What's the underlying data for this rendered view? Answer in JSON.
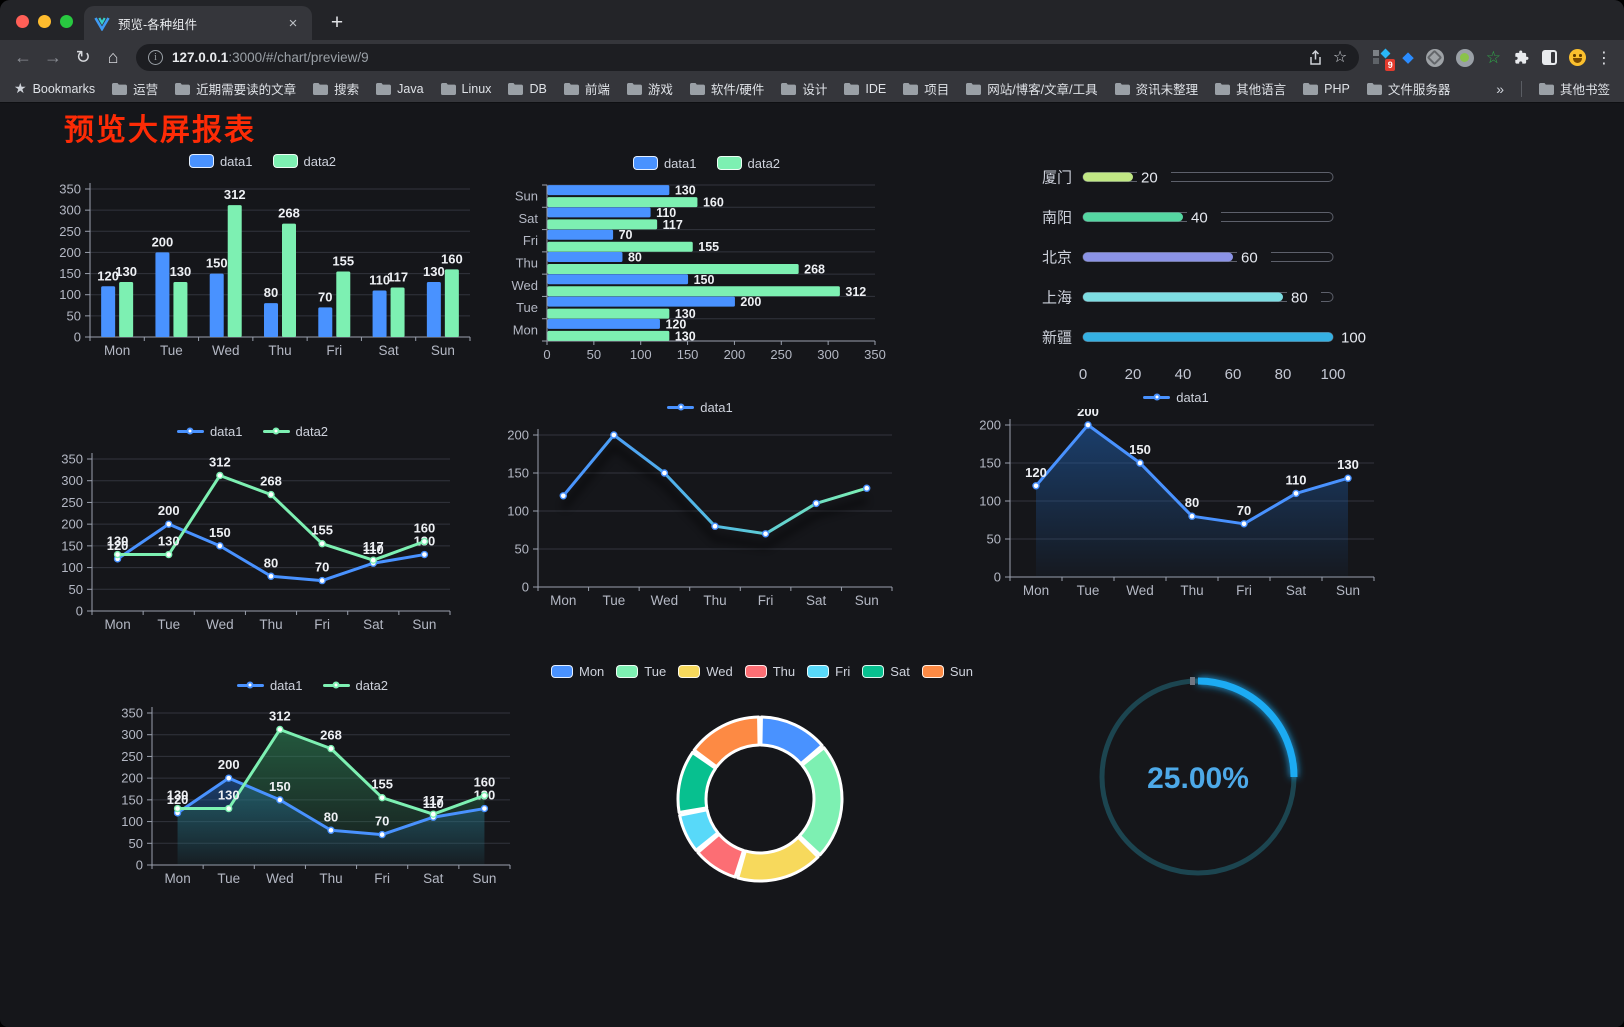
{
  "browser": {
    "tab": {
      "title": "预览-各种组件"
    },
    "url": {
      "host": "127.0.0.1",
      "rest": ":3000/#/chart/preview/9"
    },
    "bookmarks_label": "Bookmarks",
    "bookmarks": [
      "运营",
      "近期需要读的文章",
      "搜索",
      "Java",
      "Linux",
      "DB",
      "前端",
      "游戏",
      "软件/硬件",
      "设计",
      "IDE",
      "项目",
      "网站/博客/文章/工具",
      "资讯未整理",
      "其他语言",
      "PHP",
      "文件服务器"
    ],
    "other_bookmarks": "其他书签",
    "extensions_badge": "9"
  },
  "icons": {
    "back": "←",
    "forward": "→",
    "reload": "↻",
    "home": "⌂",
    "star_outline": "☆",
    "green_star": "☆",
    "bookmarks_star": "★",
    "overflow_chevron": "»",
    "menu_kebab": "⋮",
    "info": "i",
    "gem": "◆",
    "close": "×",
    "plus": "+"
  },
  "page": {
    "title": "预览大屏报表"
  },
  "colors": {
    "accent_blue": "#4992ff",
    "accent_green": "#7df0b2",
    "title_red": "#fd2b06",
    "gauge_blue": "#1fabf3",
    "page_bg": "#15161a"
  },
  "chart_data": [
    {
      "id": "c1",
      "name": "grouped-bar-chart",
      "type": "bar",
      "legend": "rect",
      "categories": [
        "Mon",
        "Tue",
        "Wed",
        "Thu",
        "Fri",
        "Sat",
        "Sun"
      ],
      "series": [
        {
          "name": "data1",
          "color": "#4992ff",
          "values": [
            120,
            200,
            150,
            80,
            70,
            110,
            130
          ]
        },
        {
          "name": "data2",
          "color": "#7df0b2",
          "values": [
            130,
            130,
            312,
            268,
            155,
            117,
            160
          ]
        }
      ],
      "ylim": [
        0,
        350
      ],
      "ystep": 50
    },
    {
      "id": "c2",
      "name": "horizontal-bar-chart",
      "type": "hbar",
      "legend": "rect",
      "categories": [
        "Mon",
        "Tue",
        "Wed",
        "Thu",
        "Fri",
        "Sat",
        "Sun"
      ],
      "series": [
        {
          "name": "data1",
          "color": "#4992ff",
          "values": [
            120,
            200,
            150,
            80,
            70,
            110,
            130
          ]
        },
        {
          "name": "data2",
          "color": "#7df0b2",
          "values": [
            130,
            130,
            312,
            268,
            155,
            117,
            160
          ]
        }
      ],
      "xlim": [
        0,
        350
      ],
      "xstep": 50
    },
    {
      "id": "c3",
      "name": "progress-bar-list",
      "type": "progress",
      "items": [
        {
          "label": "厦门",
          "value": 20,
          "color": "#c0e784"
        },
        {
          "label": "南阳",
          "value": 40,
          "color": "#55d7a2"
        },
        {
          "label": "北京",
          "value": 60,
          "color": "#8b93e6"
        },
        {
          "label": "上海",
          "value": 80,
          "color": "#7ddde2"
        },
        {
          "label": "新疆",
          "value": 100,
          "color": "#35b0e2"
        }
      ],
      "axis": [
        0,
        20,
        40,
        60,
        80,
        100
      ]
    },
    {
      "id": "c4",
      "name": "two-line-chart",
      "type": "line",
      "legend": "line",
      "labels": true,
      "categories": [
        "Mon",
        "Tue",
        "Wed",
        "Thu",
        "Fri",
        "Sat",
        "Sun"
      ],
      "series": [
        {
          "name": "data1",
          "color": "#4992ff",
          "values": [
            120,
            200,
            150,
            80,
            70,
            110,
            130
          ]
        },
        {
          "name": "data2",
          "color": "#7df0b2",
          "values": [
            130,
            130,
            312,
            268,
            155,
            117,
            160
          ]
        }
      ],
      "ylim": [
        0,
        350
      ],
      "ystep": 50
    },
    {
      "id": "c5",
      "name": "gradient-line-chart",
      "type": "line",
      "legend": "line",
      "labels": false,
      "gradient": true,
      "categories": [
        "Mon",
        "Tue",
        "Wed",
        "Thu",
        "Fri",
        "Sat",
        "Sun"
      ],
      "series": [
        {
          "name": "data1",
          "color": "#4992ff",
          "color2": "#7df0b2",
          "values": [
            120,
            200,
            150,
            80,
            70,
            110,
            130
          ]
        }
      ],
      "ylim": [
        0,
        200
      ],
      "ystep": 50
    },
    {
      "id": "c6",
      "name": "area-line-chart",
      "type": "line",
      "legend": "line",
      "labels": true,
      "categories": [
        "Mon",
        "Tue",
        "Wed",
        "Thu",
        "Fri",
        "Sat",
        "Sun"
      ],
      "series": [
        {
          "name": "data1",
          "color": "#4992ff",
          "area": true,
          "area_color": "#1f5fae",
          "values": [
            120,
            200,
            150,
            80,
            70,
            110,
            130
          ]
        }
      ],
      "ylim": [
        0,
        200
      ],
      "ystep": 50
    },
    {
      "id": "c7",
      "name": "two-area-line-chart",
      "type": "line",
      "legend": "line",
      "labels": true,
      "categories": [
        "Mon",
        "Tue",
        "Wed",
        "Thu",
        "Fri",
        "Sat",
        "Sun"
      ],
      "series": [
        {
          "name": "data1",
          "color": "#4992ff",
          "area": true,
          "area_color": "#1f5fae",
          "values": [
            120,
            200,
            150,
            80,
            70,
            110,
            130
          ]
        },
        {
          "name": "data2",
          "color": "#7df0b2",
          "area": true,
          "area_color": "#2f8f5b",
          "values": [
            130,
            130,
            312,
            268,
            155,
            117,
            160
          ]
        }
      ],
      "ylim": [
        0,
        350
      ],
      "ystep": 50
    },
    {
      "id": "c8",
      "name": "donut-chart",
      "type": "donut",
      "legend": "rect",
      "labels": [
        "Mon",
        "Tue",
        "Wed",
        "Thu",
        "Fri",
        "Sat",
        "Sun"
      ],
      "values": [
        120,
        200,
        150,
        80,
        70,
        110,
        130
      ],
      "colors": [
        "#4992ff",
        "#7df0b2",
        "#f7d95c",
        "#fc6e74",
        "#58d9f9",
        "#07c08f",
        "#fd8a44"
      ]
    },
    {
      "id": "c9",
      "name": "gauge-chart",
      "type": "gauge",
      "value": 25,
      "label": "25.00%",
      "color": "#1fabf3",
      "track": "#1c4550",
      "text_color": "#4da9e8"
    }
  ]
}
